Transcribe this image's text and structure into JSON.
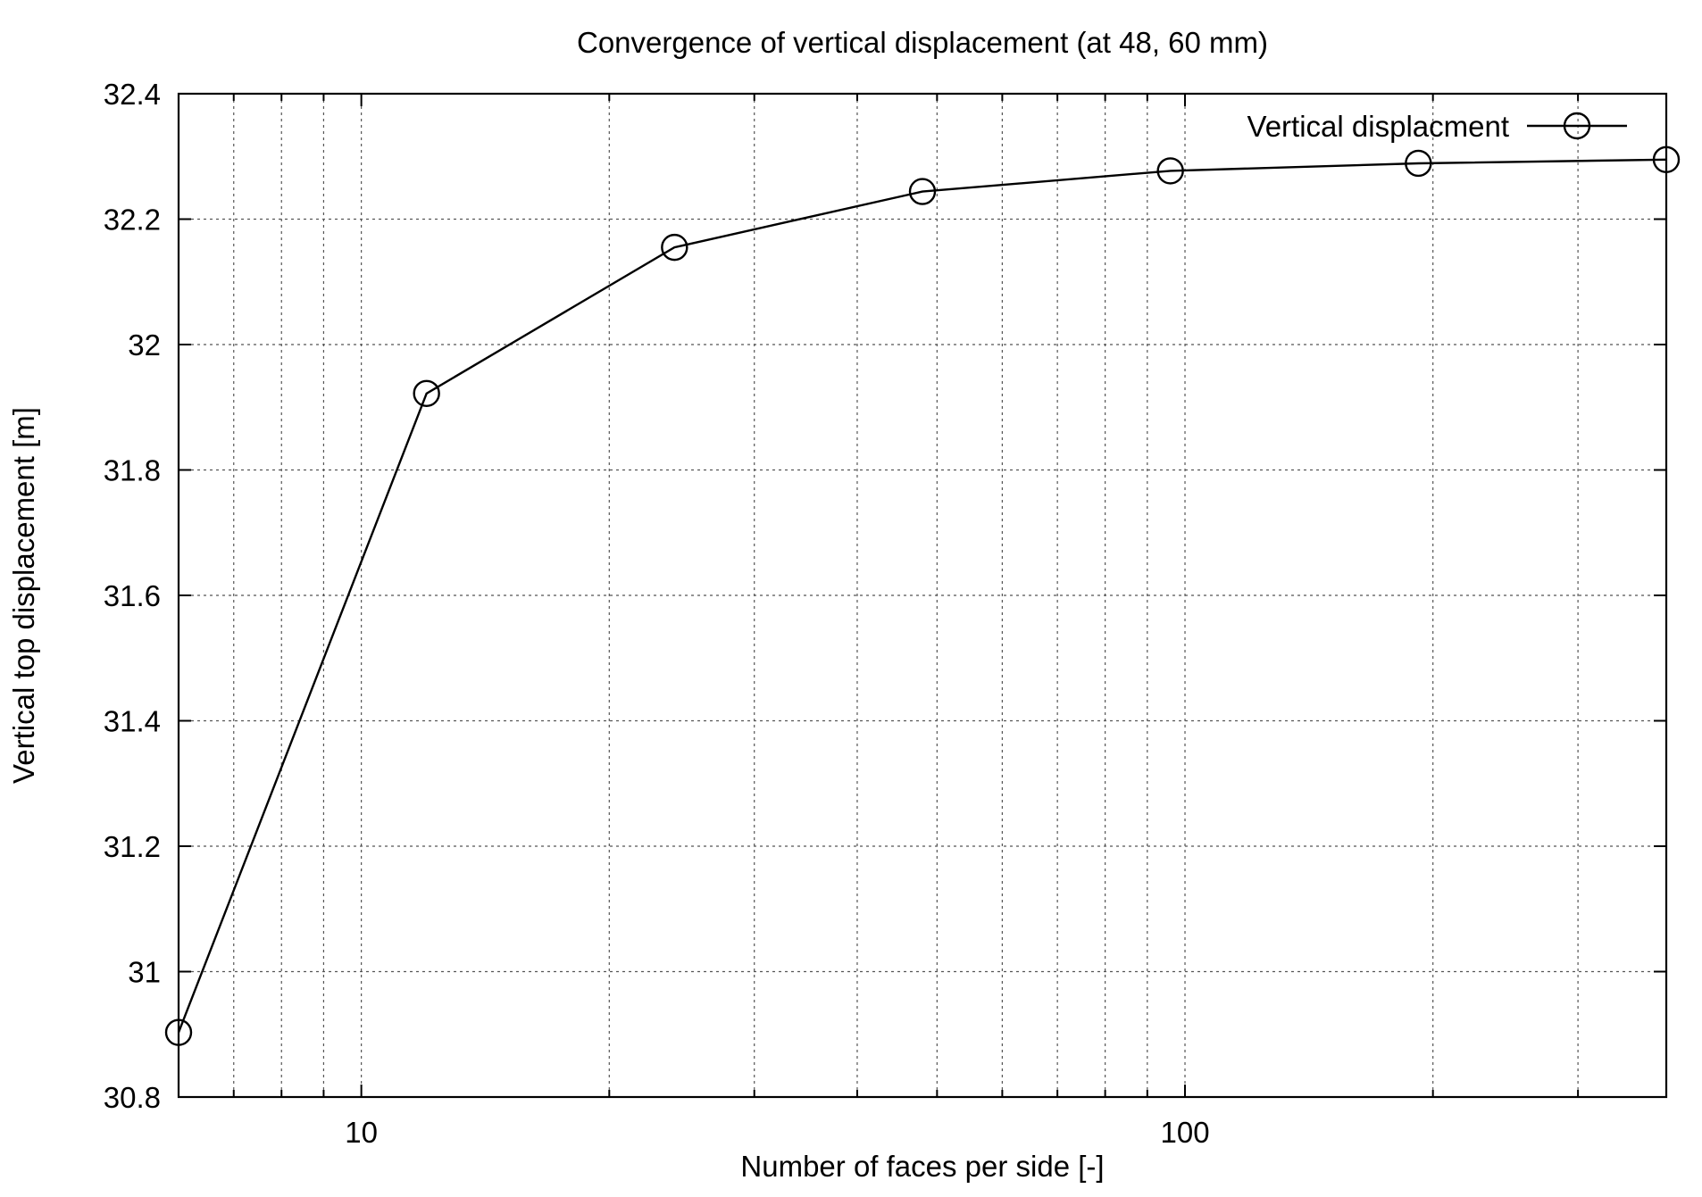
{
  "chart_data": {
    "type": "line",
    "title": "Convergence of vertical displacement (at 48, 60 mm)",
    "xlabel": "Number of faces per side [-]",
    "ylabel": "Vertical top displacement [m]",
    "x_scale": "log",
    "xlim": [
      6,
      384
    ],
    "ylim": [
      30.8,
      32.4
    ],
    "x_ticks": [
      10,
      100
    ],
    "x_tick_labels": [
      "10",
      "100"
    ],
    "y_ticks": [
      30.8,
      31,
      31.2,
      31.4,
      31.6,
      31.8,
      32,
      32.2,
      32.4
    ],
    "y_tick_labels": [
      "30.8",
      "31",
      "31.2",
      "31.4",
      "31.6",
      "31.8",
      "32",
      "32.2",
      "32.4"
    ],
    "grid": true,
    "legend_position": "top-right",
    "series": [
      {
        "name": "Vertical displacment",
        "marker": "open-circle",
        "color": "#000000",
        "x": [
          6,
          12,
          24,
          48,
          96,
          192,
          384
        ],
        "y": [
          30.903,
          31.922,
          32.155,
          32.244,
          32.277,
          32.289,
          32.295
        ]
      }
    ]
  }
}
